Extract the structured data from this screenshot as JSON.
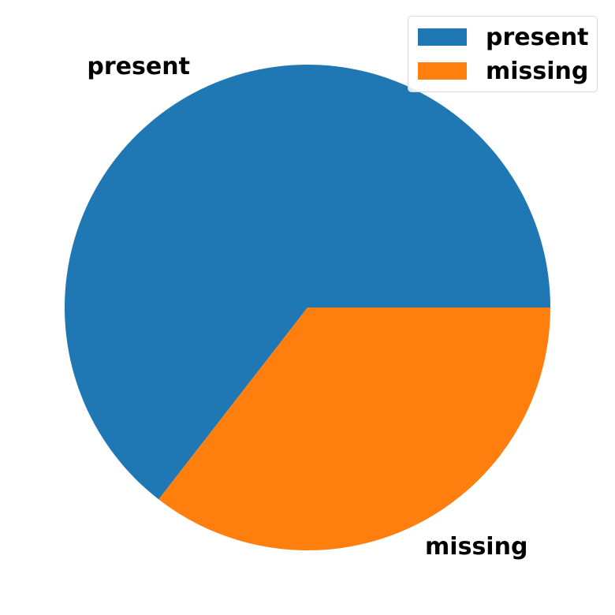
{
  "chart_data": {
    "type": "pie",
    "slices": [
      {
        "label": "present",
        "value": 64.5,
        "color": "#1f77b4"
      },
      {
        "label": "missing",
        "value": 35.5,
        "color": "#ff7f0e"
      }
    ],
    "legend": {
      "placement": "top-right",
      "entries": [
        "present",
        "missing"
      ]
    },
    "title": ""
  }
}
